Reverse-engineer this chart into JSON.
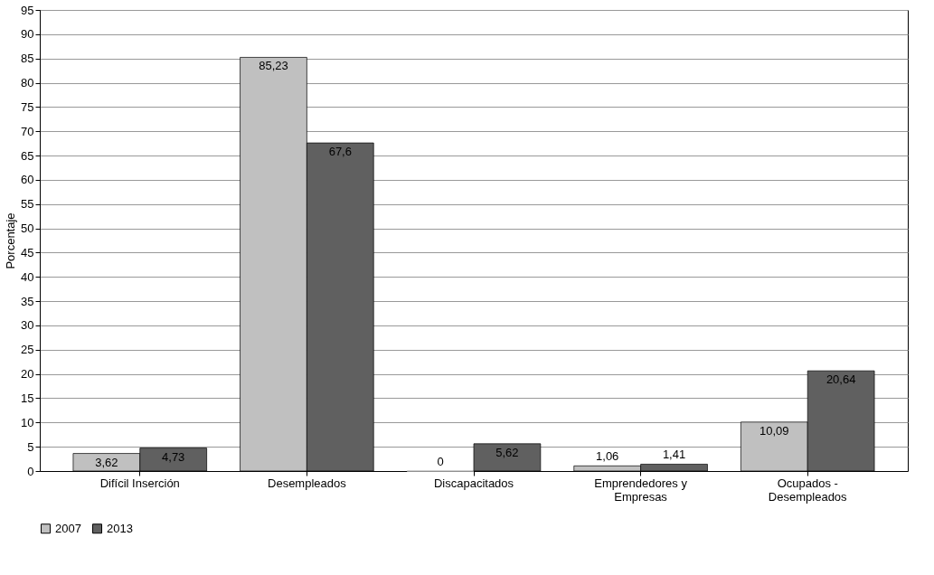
{
  "chart_data": {
    "type": "bar",
    "ylabel": "Porcentaje",
    "categories": [
      "Difícil Inserción",
      "Desempleados",
      "Discapacitados",
      "Emprendedores y Empresas",
      "Ocupados - Desempleados"
    ],
    "series": [
      {
        "name": "2007",
        "color": "#c0c0c0",
        "values": [
          3.62,
          85.23,
          0,
          1.06,
          10.09
        ],
        "value_labels": [
          "3,62",
          "85,23",
          "0",
          "1,06",
          "10,09"
        ]
      },
      {
        "name": "2013",
        "color": "#606060",
        "values": [
          4.73,
          67.6,
          5.62,
          1.41,
          20.64
        ],
        "value_labels": [
          "4,73",
          "67,6",
          "5,62",
          "1,41",
          "20,64"
        ]
      }
    ],
    "ylim": [
      0,
      95
    ],
    "yticks": [
      0,
      5,
      10,
      15,
      20,
      25,
      30,
      35,
      40,
      45,
      50,
      55,
      60,
      65,
      70,
      75,
      80,
      85,
      90,
      95
    ],
    "grid": "y",
    "legend": "bottom left"
  }
}
